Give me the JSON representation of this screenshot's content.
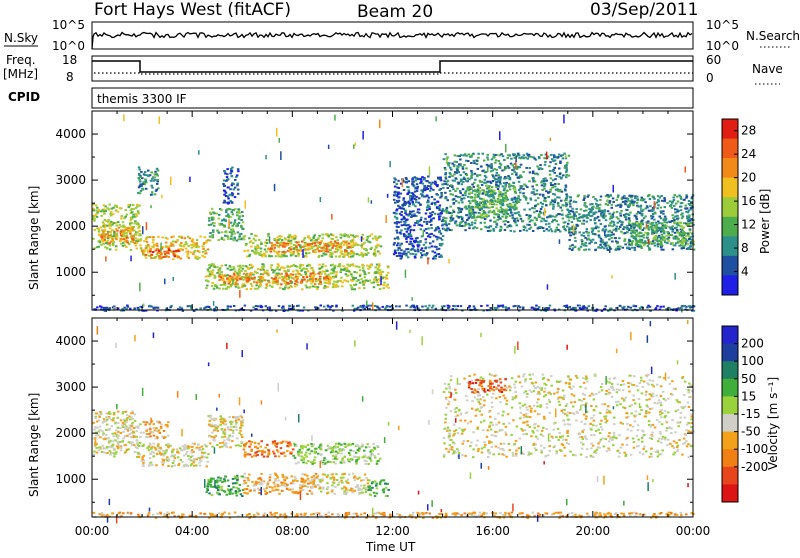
{
  "header": {
    "station": "Fort Hays West (fitACF)",
    "beam": "Beam 20",
    "date": "03/Sep/2011"
  },
  "strip_panels": {
    "nsky_label": "N.Sky",
    "nsky_ticks": [
      "10^5",
      "10^0"
    ],
    "nsearch_label": "N.Search",
    "nsearch_ticks": [
      "10^5",
      "10^0"
    ],
    "freq_label": "Freq.",
    "freq_unit": "[MHz]",
    "freq_ticks": [
      "18",
      "8"
    ],
    "nave_label": "Nave",
    "nave_ticks": [
      "60",
      "0"
    ],
    "cpid_label": "CPID",
    "cpid_value": "themis 3300 IF"
  },
  "x_axis": {
    "label": "Time UT",
    "ticks": [
      "00:00",
      "04:00",
      "08:00",
      "12:00",
      "16:00",
      "20:00",
      "00:00"
    ]
  },
  "colors": {
    "power": [
      "#1f1fe6",
      "#1f4fa0",
      "#2c8f8a",
      "#4dad4d",
      "#9ccc3a",
      "#f0c020",
      "#f28a1a",
      "#f05a18",
      "#e01e14"
    ],
    "velocity": [
      "#2424cc",
      "#1f3f9f",
      "#1f7f62",
      "#3fae3a",
      "#9ad23c",
      "#cfcfc7",
      "#f3a11a",
      "#f07f14",
      "#e8451c",
      "#dd1414"
    ],
    "ground_scatter": "#c8c8c0"
  },
  "chart_data": [
    {
      "type": "heatmap",
      "name": "power",
      "ylabel": "Slant Range [km]",
      "xlabel": "",
      "x_range_hours": [
        0,
        24
      ],
      "ylim": [
        180,
        4500
      ],
      "y_ticks": [
        1000,
        2000,
        3000,
        4000
      ],
      "colorbar": {
        "label": "Power [dB]",
        "ticks": [
          "4",
          "8",
          "12",
          "16",
          "20",
          "24",
          "28"
        ],
        "range": [
          0,
          30
        ]
      },
      "regions": [
        {
          "t0": 0.0,
          "t1": 1.9,
          "r0": 1500,
          "r1": 2500,
          "level": 4
        },
        {
          "t0": 0.3,
          "t1": 1.7,
          "r0": 1650,
          "r1": 2000,
          "level": 6
        },
        {
          "t0": 1.9,
          "t1": 4.6,
          "r0": 1300,
          "r1": 1800,
          "level": 5
        },
        {
          "t0": 2.1,
          "t1": 3.5,
          "r0": 1350,
          "r1": 1550,
          "level": 7
        },
        {
          "t0": 4.6,
          "t1": 6.0,
          "r0": 1700,
          "r1": 2400,
          "level": 3
        },
        {
          "t0": 6.0,
          "t1": 11.5,
          "r0": 1350,
          "r1": 1850,
          "level": 4
        },
        {
          "t0": 7.0,
          "t1": 10.5,
          "r0": 1450,
          "r1": 1700,
          "level": 6
        },
        {
          "t0": 4.5,
          "t1": 11.8,
          "r0": 650,
          "r1": 1200,
          "level": 4
        },
        {
          "t0": 5.0,
          "t1": 9.5,
          "r0": 750,
          "r1": 1000,
          "level": 6
        },
        {
          "t0": 1.8,
          "t1": 2.6,
          "r0": 2700,
          "r1": 3300,
          "level": 2
        },
        {
          "t0": 5.2,
          "t1": 5.8,
          "r0": 2500,
          "r1": 3300,
          "level": 1
        },
        {
          "t0": 12.0,
          "t1": 14.0,
          "r0": 1300,
          "r1": 3100,
          "level": 1
        },
        {
          "t0": 14.0,
          "t1": 19.0,
          "r0": 1900,
          "r1": 3600,
          "level": 2
        },
        {
          "t0": 15.0,
          "t1": 17.0,
          "r0": 2200,
          "r1": 2900,
          "level": 3
        },
        {
          "t0": 19.0,
          "t1": 24.0,
          "r0": 1500,
          "r1": 2700,
          "level": 2
        },
        {
          "t0": 21.5,
          "t1": 24.0,
          "r0": 1600,
          "r1": 2100,
          "level": 3
        },
        {
          "t0": 0.0,
          "t1": 24.0,
          "r0": 180,
          "r1": 300,
          "level": 1
        }
      ]
    },
    {
      "type": "heatmap",
      "name": "velocity",
      "ylabel": "Slant Range [km]",
      "xlabel": "Time UT",
      "x_range_hours": [
        0,
        24
      ],
      "ylim": [
        180,
        4500
      ],
      "y_ticks": [
        1000,
        2000,
        3000,
        4000
      ],
      "colorbar": {
        "label": "Velocity [m s⁻¹]",
        "ticks": [
          "200",
          "100",
          "50",
          "15",
          "-15",
          "-50",
          "-100",
          "-200"
        ],
        "range": [
          -250,
          250
        ]
      },
      "regions": [
        {
          "t0": 0.0,
          "t1": 1.9,
          "r0": 1500,
          "r1": 2500,
          "level": 5
        },
        {
          "t0": 1.9,
          "t1": 4.6,
          "r0": 1300,
          "r1": 1800,
          "level": 5
        },
        {
          "t0": 2.0,
          "t1": 3.0,
          "r0": 1900,
          "r1": 2300,
          "level": 6
        },
        {
          "t0": 4.6,
          "t1": 6.0,
          "r0": 1700,
          "r1": 2400,
          "level": 5
        },
        {
          "t0": 6.0,
          "t1": 8.0,
          "r0": 1500,
          "r1": 1850,
          "level": 7
        },
        {
          "t0": 8.0,
          "t1": 11.5,
          "r0": 1350,
          "r1": 1800,
          "level": 4
        },
        {
          "t0": 4.5,
          "t1": 6.0,
          "r0": 650,
          "r1": 1100,
          "level": 3
        },
        {
          "t0": 6.0,
          "t1": 9.0,
          "r0": 700,
          "r1": 1150,
          "level": 6
        },
        {
          "t0": 9.0,
          "t1": 11.0,
          "r0": 700,
          "r1": 1150,
          "level": 5
        },
        {
          "t0": 11.0,
          "t1": 11.8,
          "r0": 650,
          "r1": 1000,
          "level": 3
        },
        {
          "t0": 14.0,
          "t1": 24.0,
          "r0": 1500,
          "r1": 3300,
          "level": 5
        },
        {
          "t0": 15.0,
          "t1": 16.5,
          "r0": 2900,
          "r1": 3200,
          "level": 8
        },
        {
          "t0": 0.0,
          "t1": 24.0,
          "r0": 180,
          "r1": 300,
          "level": 6
        }
      ]
    }
  ]
}
